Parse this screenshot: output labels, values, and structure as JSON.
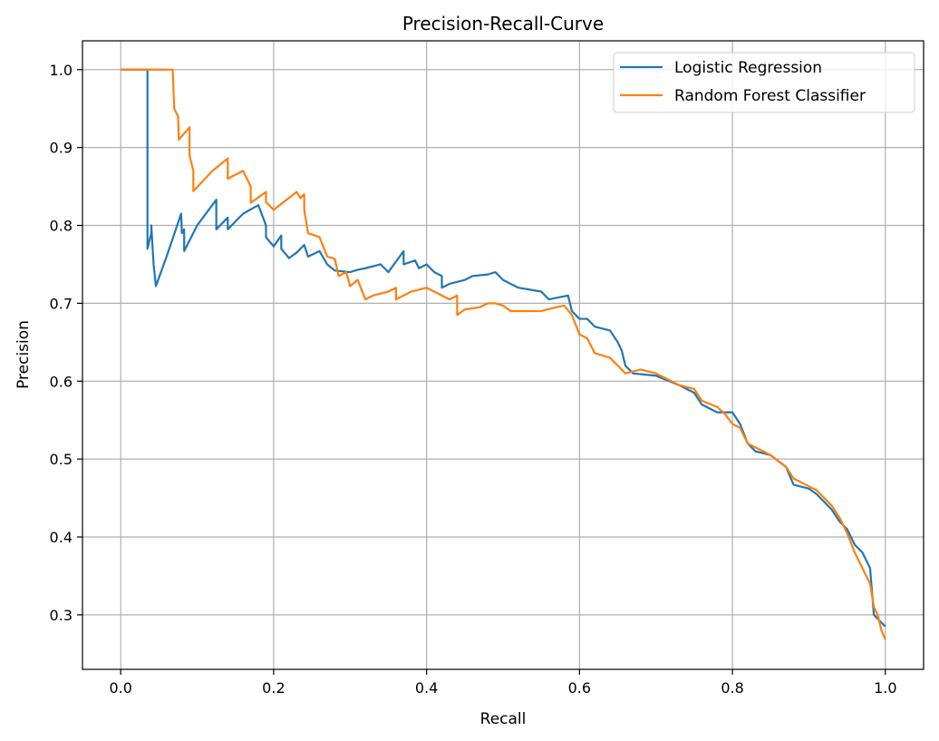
{
  "chart_data": {
    "type": "line",
    "title": "Precision-Recall-Curve",
    "xlabel": "Recall",
    "ylabel": "Precision",
    "xlim": [
      -0.05,
      1.05
    ],
    "ylim": [
      0.23,
      1.037
    ],
    "xticks": [
      0.0,
      0.2,
      0.4,
      0.6,
      0.8,
      1.0
    ],
    "xtick_labels": [
      "0.0",
      "0.2",
      "0.4",
      "0.6",
      "0.8",
      "1.0"
    ],
    "yticks": [
      0.3,
      0.4,
      0.5,
      0.6,
      0.7,
      0.8,
      0.9,
      1.0
    ],
    "ytick_labels": [
      "0.3",
      "0.4",
      "0.5",
      "0.6",
      "0.7",
      "0.8",
      "0.9",
      "1.0"
    ],
    "grid": true,
    "legend_position": "top-right",
    "series": [
      {
        "name": "Logistic Regression",
        "color": "#1f77b4",
        "points": [
          [
            0.0,
            1.0
          ],
          [
            0.035,
            1.0
          ],
          [
            0.035,
            0.77
          ],
          [
            0.04,
            0.79
          ],
          [
            0.04,
            0.8
          ],
          [
            0.043,
            0.75
          ],
          [
            0.046,
            0.722
          ],
          [
            0.06,
            0.76
          ],
          [
            0.079,
            0.815
          ],
          [
            0.08,
            0.79
          ],
          [
            0.083,
            0.795
          ],
          [
            0.083,
            0.767
          ],
          [
            0.1,
            0.8
          ],
          [
            0.125,
            0.833
          ],
          [
            0.125,
            0.795
          ],
          [
            0.14,
            0.81
          ],
          [
            0.14,
            0.795
          ],
          [
            0.16,
            0.815
          ],
          [
            0.18,
            0.826
          ],
          [
            0.19,
            0.8
          ],
          [
            0.19,
            0.785
          ],
          [
            0.2,
            0.773
          ],
          [
            0.21,
            0.787
          ],
          [
            0.21,
            0.77
          ],
          [
            0.22,
            0.758
          ],
          [
            0.23,
            0.765
          ],
          [
            0.24,
            0.775
          ],
          [
            0.245,
            0.76
          ],
          [
            0.26,
            0.767
          ],
          [
            0.27,
            0.75
          ],
          [
            0.28,
            0.742
          ],
          [
            0.3,
            0.74
          ],
          [
            0.31,
            0.743
          ],
          [
            0.32,
            0.745
          ],
          [
            0.34,
            0.75
          ],
          [
            0.35,
            0.74
          ],
          [
            0.37,
            0.767
          ],
          [
            0.37,
            0.75
          ],
          [
            0.385,
            0.755
          ],
          [
            0.39,
            0.745
          ],
          [
            0.4,
            0.75
          ],
          [
            0.41,
            0.74
          ],
          [
            0.42,
            0.735
          ],
          [
            0.42,
            0.72
          ],
          [
            0.43,
            0.725
          ],
          [
            0.45,
            0.73
          ],
          [
            0.46,
            0.735
          ],
          [
            0.48,
            0.737
          ],
          [
            0.49,
            0.74
          ],
          [
            0.5,
            0.73
          ],
          [
            0.51,
            0.725
          ],
          [
            0.52,
            0.72
          ],
          [
            0.55,
            0.715
          ],
          [
            0.56,
            0.705
          ],
          [
            0.585,
            0.71
          ],
          [
            0.59,
            0.69
          ],
          [
            0.6,
            0.68
          ],
          [
            0.61,
            0.68
          ],
          [
            0.62,
            0.67
          ],
          [
            0.64,
            0.665
          ],
          [
            0.65,
            0.65
          ],
          [
            0.655,
            0.64
          ],
          [
            0.66,
            0.62
          ],
          [
            0.67,
            0.61
          ],
          [
            0.7,
            0.607
          ],
          [
            0.71,
            0.603
          ],
          [
            0.73,
            0.595
          ],
          [
            0.75,
            0.585
          ],
          [
            0.76,
            0.57
          ],
          [
            0.78,
            0.56
          ],
          [
            0.8,
            0.56
          ],
          [
            0.81,
            0.545
          ],
          [
            0.82,
            0.52
          ],
          [
            0.83,
            0.51
          ],
          [
            0.85,
            0.505
          ],
          [
            0.87,
            0.49
          ],
          [
            0.88,
            0.467
          ],
          [
            0.9,
            0.462
          ],
          [
            0.91,
            0.455
          ],
          [
            0.93,
            0.435
          ],
          [
            0.94,
            0.42
          ],
          [
            0.95,
            0.41
          ],
          [
            0.96,
            0.39
          ],
          [
            0.97,
            0.38
          ],
          [
            0.98,
            0.36
          ],
          [
            0.985,
            0.3
          ],
          [
            0.99,
            0.295
          ],
          [
            0.995,
            0.29
          ],
          [
            1.0,
            0.285
          ]
        ]
      },
      {
        "name": "Random Forest Classifier",
        "color": "#ff7f0e",
        "points": [
          [
            0.0,
            1.0
          ],
          [
            0.068,
            1.0
          ],
          [
            0.07,
            0.95
          ],
          [
            0.075,
            0.94
          ],
          [
            0.076,
            0.91
          ],
          [
            0.09,
            0.926
          ],
          [
            0.09,
            0.89
          ],
          [
            0.095,
            0.87
          ],
          [
            0.095,
            0.844
          ],
          [
            0.12,
            0.87
          ],
          [
            0.14,
            0.886
          ],
          [
            0.14,
            0.86
          ],
          [
            0.16,
            0.87
          ],
          [
            0.17,
            0.85
          ],
          [
            0.17,
            0.829
          ],
          [
            0.19,
            0.843
          ],
          [
            0.19,
            0.83
          ],
          [
            0.2,
            0.82
          ],
          [
            0.23,
            0.843
          ],
          [
            0.235,
            0.835
          ],
          [
            0.24,
            0.84
          ],
          [
            0.24,
            0.82
          ],
          [
            0.245,
            0.79
          ],
          [
            0.26,
            0.785
          ],
          [
            0.27,
            0.76
          ],
          [
            0.28,
            0.757
          ],
          [
            0.285,
            0.735
          ],
          [
            0.295,
            0.74
          ],
          [
            0.3,
            0.722
          ],
          [
            0.31,
            0.73
          ],
          [
            0.32,
            0.705
          ],
          [
            0.33,
            0.71
          ],
          [
            0.35,
            0.715
          ],
          [
            0.36,
            0.72
          ],
          [
            0.36,
            0.705
          ],
          [
            0.37,
            0.71
          ],
          [
            0.38,
            0.715
          ],
          [
            0.4,
            0.72
          ],
          [
            0.41,
            0.715
          ],
          [
            0.43,
            0.705
          ],
          [
            0.44,
            0.71
          ],
          [
            0.44,
            0.685
          ],
          [
            0.45,
            0.692
          ],
          [
            0.47,
            0.695
          ],
          [
            0.48,
            0.7
          ],
          [
            0.49,
            0.7
          ],
          [
            0.5,
            0.697
          ],
          [
            0.51,
            0.69
          ],
          [
            0.53,
            0.69
          ],
          [
            0.55,
            0.69
          ],
          [
            0.57,
            0.695
          ],
          [
            0.58,
            0.697
          ],
          [
            0.59,
            0.685
          ],
          [
            0.6,
            0.66
          ],
          [
            0.61,
            0.655
          ],
          [
            0.62,
            0.636
          ],
          [
            0.64,
            0.63
          ],
          [
            0.65,
            0.62
          ],
          [
            0.66,
            0.61
          ],
          [
            0.68,
            0.615
          ],
          [
            0.7,
            0.61
          ],
          [
            0.72,
            0.6
          ],
          [
            0.73,
            0.595
          ],
          [
            0.75,
            0.59
          ],
          [
            0.76,
            0.575
          ],
          [
            0.78,
            0.567
          ],
          [
            0.79,
            0.558
          ],
          [
            0.8,
            0.545
          ],
          [
            0.81,
            0.54
          ],
          [
            0.82,
            0.52
          ],
          [
            0.83,
            0.515
          ],
          [
            0.85,
            0.505
          ],
          [
            0.87,
            0.49
          ],
          [
            0.88,
            0.475
          ],
          [
            0.9,
            0.465
          ],
          [
            0.91,
            0.46
          ],
          [
            0.93,
            0.44
          ],
          [
            0.94,
            0.425
          ],
          [
            0.95,
            0.405
          ],
          [
            0.96,
            0.38
          ],
          [
            0.97,
            0.36
          ],
          [
            0.98,
            0.34
          ],
          [
            0.985,
            0.31
          ],
          [
            0.99,
            0.3
          ],
          [
            0.995,
            0.28
          ],
          [
            1.0,
            0.268
          ]
        ]
      }
    ]
  }
}
